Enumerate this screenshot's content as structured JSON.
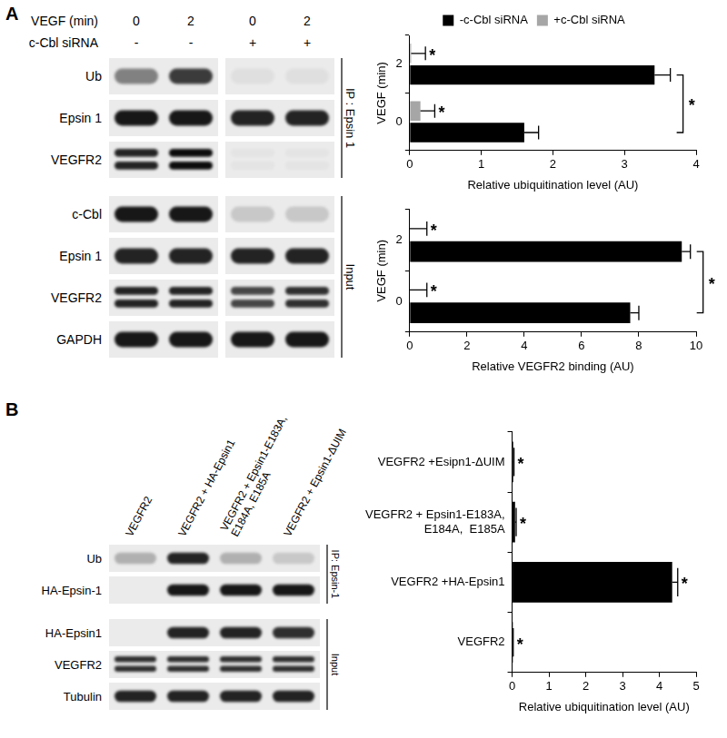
{
  "figure": {
    "panel_A": {
      "letter": "A",
      "blot": {
        "lane_header": [
          {
            "label": "VEGF (min)",
            "lanes": [
              "0",
              "2",
              "0",
              "2"
            ]
          },
          {
            "label": "c-Cbl siRNA",
            "lanes": [
              "-",
              "-",
              "+",
              "+"
            ]
          }
        ],
        "splice_after_lane": 2,
        "groups": [
          {
            "label": "IP : Epsin 1",
            "rows": [
              {
                "label": "Ub",
                "intensity": [
                  0.45,
                  0.75,
                  0.05,
                  0.05
                ]
              },
              {
                "label": "Epsin 1",
                "intensity": [
                  0.9,
                  0.9,
                  0.85,
                  0.85
                ]
              },
              {
                "label": "VEGFR2",
                "doublet": true,
                "intensity": [
                  0.85,
                  0.95,
                  0.03,
                  0.03
                ]
              }
            ]
          },
          {
            "label": "Input",
            "rows": [
              {
                "label": "c-Cbl",
                "intensity": [
                  0.9,
                  0.9,
                  0.15,
                  0.15
                ]
              },
              {
                "label": "Epsin 1",
                "intensity": [
                  0.85,
                  0.85,
                  0.85,
                  0.85
                ]
              },
              {
                "label": "VEGFR2",
                "doublet": true,
                "intensity": [
                  0.85,
                  0.85,
                  0.7,
                  0.8
                ]
              },
              {
                "label": "GAPDH",
                "intensity": [
                  0.9,
                  0.9,
                  0.9,
                  0.9
                ]
              }
            ]
          }
        ]
      }
    },
    "panel_B": {
      "letter": "B",
      "blot": {
        "lanes": [
          "VEGFR2",
          "VEGFR2 + HA-Epsin1",
          [
            "VEGFR2 + Epsin1-E183A,",
            "E184A, E185A"
          ],
          "VEGFR2 + Epsin1-ΔUIM"
        ],
        "groups": [
          {
            "label": "IP: Epsin-1",
            "rows": [
              {
                "label": "Ub",
                "intensity": [
                  0.25,
                  0.85,
                  0.25,
                  0.15
                ]
              },
              {
                "label": "HA-Epsin-1",
                "intensity": [
                  0.0,
                  0.9,
                  0.9,
                  0.9
                ]
              }
            ]
          },
          {
            "label": "Input",
            "rows": [
              {
                "label": "HA-Epsin1",
                "intensity": [
                  0.0,
                  0.85,
                  0.85,
                  0.8
                ]
              },
              {
                "label": "VEGFR2",
                "doublet": true,
                "intensity": [
                  0.8,
                  0.8,
                  0.8,
                  0.8
                ]
              },
              {
                "label": "Tubulin",
                "intensity": [
                  0.85,
                  0.85,
                  0.85,
                  0.85
                ]
              }
            ]
          }
        ]
      }
    }
  },
  "chart_data": [
    {
      "type": "bar",
      "orientation": "horizontal",
      "legend": "top",
      "grid": false,
      "y_label": "VEGF (min)",
      "x_label": "Relative ubiquitination level (AU)",
      "categories": [
        "2",
        "0"
      ],
      "series": [
        {
          "name": "+c-Cbl siRNA",
          "color": "#a6a6a6",
          "values": [
            0.02,
            0.15
          ],
          "errors": [
            0.2,
            0.2
          ],
          "significance": [
            "*",
            "*"
          ]
        },
        {
          "name": "-c-Cbl siRNA",
          "color": "#000000",
          "values": [
            3.42,
            1.6
          ],
          "errors": [
            0.22,
            0.2
          ],
          "comparison": "*"
        }
      ],
      "xlim": [
        0,
        4
      ],
      "xticks": [
        0,
        1,
        2,
        3,
        4
      ]
    },
    {
      "type": "bar",
      "orientation": "horizontal",
      "grid": false,
      "y_label": "VEGF (min)",
      "x_label": "Relative VEGFR2 binding (AU)",
      "categories": [
        "2",
        "0"
      ],
      "series": [
        {
          "color": "#a6a6a6",
          "values": [
            0,
            0
          ],
          "errors": [
            0.6,
            0.6
          ],
          "significance": [
            "*",
            "*"
          ]
        },
        {
          "color": "#000000",
          "values": [
            9.5,
            7.7
          ],
          "errors": [
            0.3,
            0.3
          ],
          "comparison": "*"
        }
      ],
      "xlim": [
        0,
        10
      ],
      "xticks": [
        0,
        2,
        4,
        6,
        8,
        10
      ]
    },
    {
      "type": "bar",
      "orientation": "horizontal",
      "grid": false,
      "x_label": "Relative ubiquitination level (AU)",
      "categories": [
        "VEGFR2 +Esipn1-ΔUIM",
        [
          "VEGFR2 + Epsin1-E183A,",
          "E184A,  E185A"
        ],
        "VEGFR2 +HA-Epsin1",
        "VEGFR2"
      ],
      "series": [
        {
          "color": "#000000",
          "values": [
            0.03,
            0.08,
            4.35,
            0.02
          ],
          "errors": [
            0.02,
            0.03,
            0.15,
            0.01
          ],
          "significance": [
            "*",
            "*",
            "*",
            "*"
          ]
        }
      ],
      "xlim": [
        0,
        5
      ],
      "xticks": [
        0,
        1,
        2,
        3,
        4,
        5
      ]
    }
  ]
}
